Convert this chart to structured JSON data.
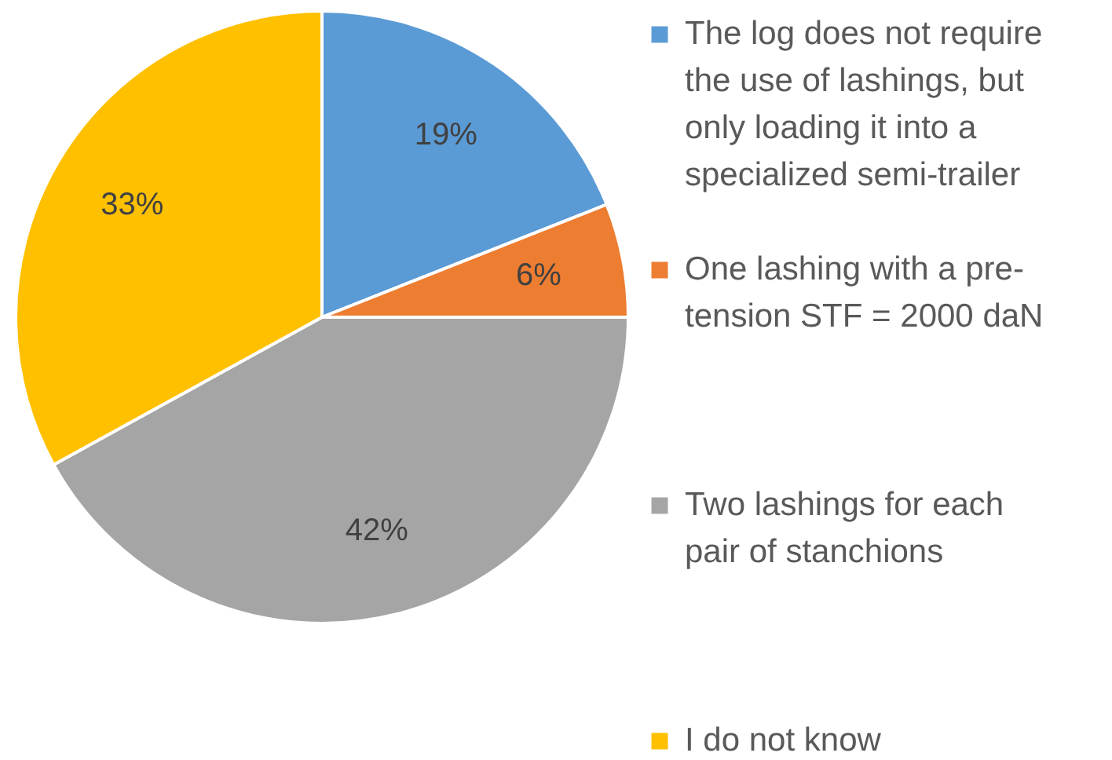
{
  "chart_data": {
    "type": "pie",
    "categories": [
      "The log does not require the use of lashings, but only loading it into a specialized semi-trailer",
      "One lashing with a pre-tension STF = 2000 daN",
      "Two lashings for each pair of stanchions",
      "I do not know"
    ],
    "values": [
      19,
      6,
      42,
      33
    ],
    "colors": [
      "#5b9bd5",
      "#ed7d31",
      "#a5a5a5",
      "#ffc000"
    ],
    "value_labels": [
      "19%",
      "6%",
      "42%",
      "33%"
    ],
    "legend": "right"
  }
}
